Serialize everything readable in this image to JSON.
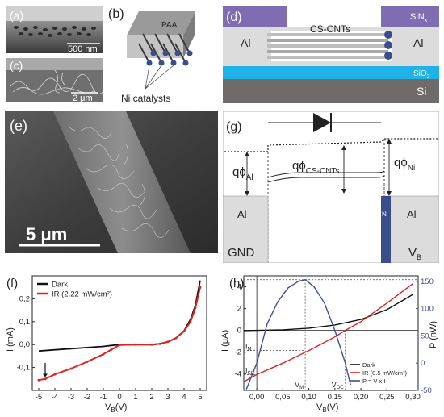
{
  "panel_a": {
    "tag": "(a)",
    "scale": "500 nm"
  },
  "panel_b": {
    "tag": "(b)",
    "label_paa": "PAA",
    "label_ni": "Ni catalysts"
  },
  "panel_c": {
    "tag": "(c)",
    "scale": "2 μm"
  },
  "panel_d": {
    "tag": "(d)",
    "label_al_left": "Al",
    "label_al_right": "Al",
    "label_cscnts": "CS-CNTs",
    "label_sinx": "SiN",
    "label_sinx_sub": "x",
    "label_sio2": "SiO",
    "label_sio2_sub": "2",
    "label_si": "Si"
  },
  "panel_e": {
    "tag": "(e)",
    "scale": "5 μm"
  },
  "panel_g": {
    "tag": "(g)",
    "phi_al": "qϕ",
    "phi_al_sub": "Al",
    "phi_cnt": "qϕ",
    "phi_cnt_sub": "CS-CNTs",
    "phi_ni": "qϕ",
    "phi_ni_sub": "Ni",
    "al_left": "Al",
    "ni": "Ni",
    "al_right": "Al",
    "gnd": "GND",
    "vb": "V",
    "vb_sub": "B"
  },
  "colors": {
    "sinx": "#7f6db4",
    "sio2": "#1fb2e6",
    "si": "#6f6b69",
    "al": "#dcdcdc",
    "ni": "#3b4e8c",
    "dark": "#111111",
    "ir": "#e02020",
    "power": "#3e4f9a"
  },
  "chart_data": [
    {
      "id": "f",
      "type": "line",
      "tag": "(f)",
      "xlabel": "V",
      "xlabel_sub": "B",
      "xlabel_unit": "(V)",
      "ylabel": "I (mA)",
      "xlim": [
        -5.4,
        5.4
      ],
      "ylim": [
        -0.2,
        0.3
      ],
      "xticks": [
        -5,
        -4,
        -3,
        -2,
        -1,
        0,
        1,
        2,
        3,
        4,
        5
      ],
      "xtick_labels": [
        "-5",
        "-4",
        "-3",
        "-2",
        "-1",
        "0",
        "1",
        "2",
        "3",
        "4",
        "5"
      ],
      "yticks": [
        -0.1,
        0.0,
        0.1,
        0.2
      ],
      "ytick_labels": [
        "-0,1",
        "0,0",
        "0,1",
        "0,2"
      ],
      "annotation": "arrow at V=-4.6 pointing to IR curve",
      "series": [
        {
          "name": "Dark",
          "color": "#111111",
          "x": [
            -5.0,
            -4.0,
            -3.0,
            -2.0,
            -1.0,
            -0.5,
            0.0,
            1.0,
            2.0,
            2.5,
            3.0,
            3.5,
            4.0,
            4.4,
            4.7,
            5.0
          ],
          "y": [
            -0.028,
            -0.023,
            -0.018,
            -0.013,
            -0.008,
            -0.004,
            0.0,
            0.0,
            0.0,
            0.003,
            0.012,
            0.028,
            0.06,
            0.11,
            0.17,
            0.28
          ]
        },
        {
          "name": "IR (2.22 mW/cm²)",
          "color": "#e02020",
          "x": [
            -5.0,
            -4.6,
            -4.0,
            -3.0,
            -2.0,
            -1.0,
            -0.5,
            0.0,
            1.0,
            2.0,
            2.5,
            3.0,
            3.5,
            4.0,
            4.4,
            4.7,
            5.0
          ],
          "y": [
            -0.155,
            -0.15,
            -0.13,
            -0.105,
            -0.075,
            -0.042,
            -0.022,
            -0.002,
            0.0,
            0.0,
            0.003,
            0.012,
            0.028,
            0.058,
            0.1,
            0.16,
            0.25
          ]
        }
      ]
    },
    {
      "id": "h",
      "type": "line",
      "tag": "(h)",
      "xlabel": "V",
      "xlabel_sub": "B",
      "xlabel_unit": "(V)",
      "ylabel": "I (μA)",
      "ylabel_right": "P (nW)",
      "xlim": [
        -0.025,
        0.31
      ],
      "ylim": [
        -5.5,
        5.0
      ],
      "ylim_right": [
        -50,
        160
      ],
      "xticks": [
        0.0,
        0.05,
        0.1,
        0.15,
        0.2,
        0.25,
        0.3
      ],
      "xtick_labels": [
        "0,00",
        "0,05",
        "0,10",
        "0,15",
        "0,20",
        "0,25",
        "0,30"
      ],
      "yticks": [
        -4,
        -2,
        0,
        2,
        4
      ],
      "ytick_labels": [
        "-4",
        "-2",
        "0",
        "2",
        "4"
      ],
      "yticks_right": [
        -50,
        0,
        50,
        100,
        150
      ],
      "ytick_labels_right": [
        "-50",
        "0",
        "50",
        "100",
        "150"
      ],
      "annot_im": "I",
      "annot_im_sub": "M",
      "annot_isc": "I",
      "annot_isc_sub": "SC",
      "annot_vm": "V",
      "annot_vm_sub": "M",
      "annot_voc": "V",
      "annot_voc_sub": "OC",
      "series": [
        {
          "name": "Dark",
          "color": "#111111",
          "x": [
            -0.025,
            0.0,
            0.05,
            0.1,
            0.15,
            0.2,
            0.25,
            0.3
          ],
          "y": [
            -0.02,
            0.0,
            0.05,
            0.2,
            0.5,
            1.0,
            1.9,
            3.3
          ]
        },
        {
          "name": "IR (0.5 mW/cm²)",
          "color": "#e02020",
          "x": [
            -0.025,
            0.0,
            0.05,
            0.1,
            0.15,
            0.17,
            0.2,
            0.25,
            0.3
          ],
          "y": [
            -4.7,
            -4.05,
            -3.0,
            -1.85,
            -0.6,
            0.0,
            0.8,
            2.5,
            4.3
          ]
        },
        {
          "name": "P = V x I",
          "color": "#3e4f9a",
          "axis": "right",
          "x": [
            -0.02,
            0.0,
            0.02,
            0.04,
            0.06,
            0.08,
            0.093,
            0.11,
            0.13,
            0.15,
            0.16,
            0.17,
            0.18
          ],
          "y": [
            -48,
            0,
            72,
            112,
            138,
            150,
            153,
            140,
            110,
            60,
            30,
            0,
            -40
          ]
        }
      ]
    }
  ]
}
